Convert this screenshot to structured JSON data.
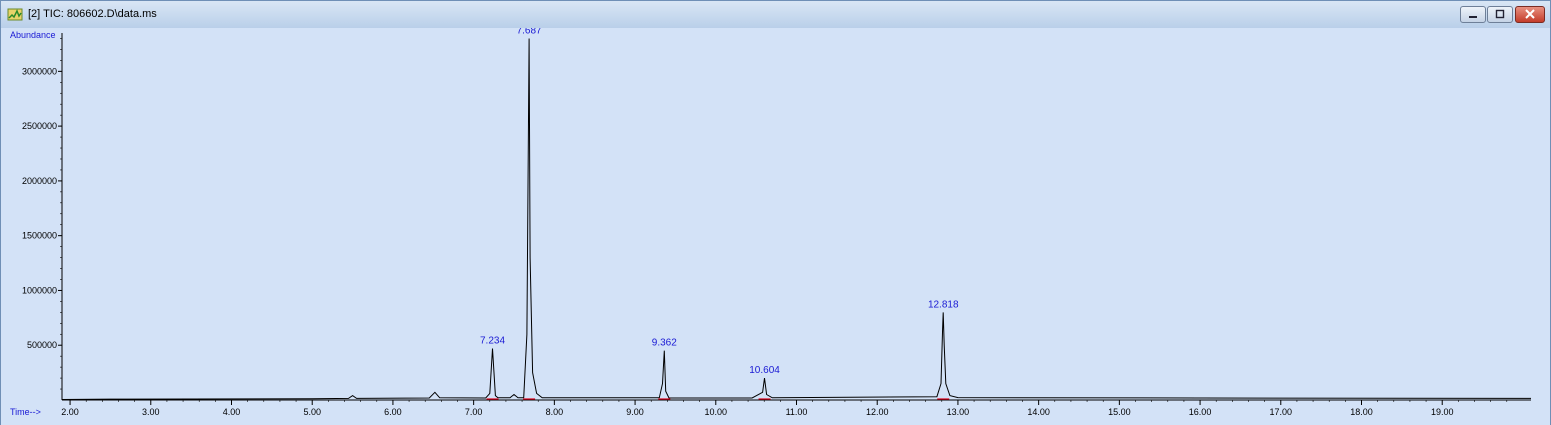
{
  "window": {
    "title": "[2] TIC: 806602.D\\data.ms",
    "controls": [
      "minimize",
      "maximize",
      "close"
    ],
    "icon": "chromatogram-icon"
  },
  "colors": {
    "plot_bg": "#d3e2f7",
    "trace": "#000000",
    "peak_label": "#1a1ad4",
    "axis_title": "#1a1ad4",
    "baseline_marker": "#e0001b"
  },
  "chart_data": {
    "type": "line",
    "title": "",
    "ylabel": "Abundance",
    "xlabel": "Time-->",
    "xlim": [
      1.9,
      20.1
    ],
    "ylim": [
      0,
      3350000
    ],
    "x_ticks": [
      2,
      3,
      4,
      5,
      6,
      7,
      8,
      9,
      10,
      11,
      12,
      13,
      14,
      15,
      16,
      17,
      18,
      19
    ],
    "x_tick_labels": [
      "2.00",
      "3.00",
      "4.00",
      "5.00",
      "6.00",
      "7.00",
      "8.00",
      "9.00",
      "10.00",
      "11.00",
      "12.00",
      "13.00",
      "14.00",
      "15.00",
      "16.00",
      "17.00",
      "18.00",
      "19.00"
    ],
    "y_ticks": [
      500000,
      1000000,
      1500000,
      2000000,
      2500000,
      3000000
    ],
    "y_tick_labels": [
      "500000",
      "1000000",
      "1500000",
      "2000000",
      "2500000",
      "3000000"
    ],
    "grid": false,
    "series": [
      {
        "x": [
          1.9,
          2.5,
          5.0,
          5.45,
          5.5,
          5.55,
          6.45,
          6.52,
          6.58,
          7.15,
          7.2,
          7.234,
          7.27,
          7.3,
          7.45,
          7.5,
          7.55,
          7.62,
          7.66,
          7.687,
          7.7,
          7.73,
          7.78,
          7.85,
          9.3,
          9.34,
          9.362,
          9.38,
          9.42,
          10.45,
          10.58,
          10.604,
          10.63,
          10.7,
          12.74,
          12.79,
          12.81,
          12.818,
          12.83,
          12.85,
          12.9,
          13.0,
          16.0,
          20.1
        ],
        "y": [
          5000,
          8000,
          12000,
          15000,
          40000,
          15000,
          18000,
          70000,
          20000,
          18000,
          60000,
          470000,
          40000,
          20000,
          20000,
          50000,
          20000,
          20000,
          600000,
          3300000,
          1300000,
          250000,
          60000,
          20000,
          20000,
          150000,
          450000,
          80000,
          18000,
          18000,
          70000,
          200000,
          50000,
          20000,
          30000,
          150000,
          650000,
          800000,
          500000,
          150000,
          40000,
          22000,
          18000,
          15000
        ]
      }
    ],
    "peaks": [
      {
        "x": 7.234,
        "y": 470000,
        "label": "7.234"
      },
      {
        "x": 7.687,
        "y": 3300000,
        "label": "7.687"
      },
      {
        "x": 9.362,
        "y": 450000,
        "label": "9.362"
      },
      {
        "x": 10.604,
        "y": 200000,
        "label": "10.604"
      },
      {
        "x": 12.818,
        "y": 800000,
        "label": "12.818"
      }
    ]
  }
}
